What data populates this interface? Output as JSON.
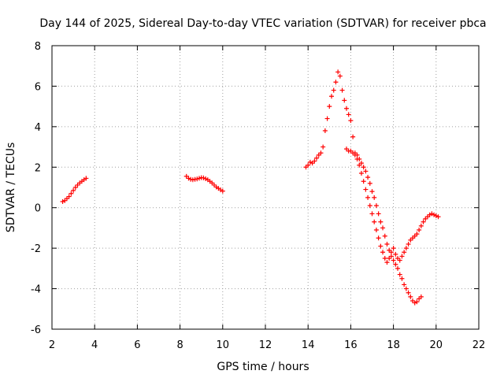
{
  "chart_data": {
    "type": "scatter",
    "title": "Day 144 of 2025, Sidereal Day-to-day VTEC variation (SDTVAR) for receiver pbca",
    "xlabel": "GPS time / hours",
    "ylabel": "SDTVAR / TECUs",
    "xlim": [
      2,
      22
    ],
    "ylim": [
      -6,
      8
    ],
    "xticks": [
      2,
      4,
      6,
      8,
      10,
      12,
      14,
      16,
      18,
      20,
      22
    ],
    "yticks": [
      -6,
      -4,
      -2,
      0,
      2,
      4,
      6,
      8
    ],
    "grid": true,
    "marker": "+",
    "color": "#ff0000",
    "series": [
      {
        "name": "segment-1",
        "points": [
          [
            2.5,
            0.3
          ],
          [
            2.6,
            0.35
          ],
          [
            2.7,
            0.45
          ],
          [
            2.8,
            0.55
          ],
          [
            2.9,
            0.7
          ],
          [
            3.0,
            0.85
          ],
          [
            3.1,
            1.0
          ],
          [
            3.2,
            1.12
          ],
          [
            3.3,
            1.22
          ],
          [
            3.4,
            1.3
          ],
          [
            3.5,
            1.38
          ],
          [
            3.6,
            1.45
          ]
        ]
      },
      {
        "name": "segment-2",
        "points": [
          [
            8.3,
            1.55
          ],
          [
            8.4,
            1.45
          ],
          [
            8.5,
            1.4
          ],
          [
            8.6,
            1.38
          ],
          [
            8.7,
            1.4
          ],
          [
            8.8,
            1.42
          ],
          [
            8.9,
            1.45
          ],
          [
            9.0,
            1.48
          ],
          [
            9.1,
            1.47
          ],
          [
            9.2,
            1.43
          ],
          [
            9.3,
            1.38
          ],
          [
            9.4,
            1.3
          ],
          [
            9.5,
            1.22
          ],
          [
            9.6,
            1.12
          ],
          [
            9.7,
            1.02
          ],
          [
            9.8,
            0.95
          ],
          [
            9.9,
            0.88
          ],
          [
            10.0,
            0.82
          ]
        ]
      },
      {
        "name": "segment-3",
        "points": [
          [
            13.9,
            2.0
          ],
          [
            14.0,
            2.1
          ],
          [
            14.1,
            2.25
          ],
          [
            14.2,
            2.2
          ],
          [
            14.3,
            2.3
          ],
          [
            14.4,
            2.45
          ],
          [
            14.5,
            2.6
          ],
          [
            14.6,
            2.7
          ],
          [
            14.7,
            3.0
          ],
          [
            14.8,
            3.8
          ],
          [
            14.9,
            4.4
          ],
          [
            15.0,
            5.0
          ],
          [
            15.1,
            5.5
          ],
          [
            15.2,
            5.8
          ],
          [
            15.3,
            6.2
          ],
          [
            15.4,
            6.7
          ],
          [
            15.5,
            6.5
          ],
          [
            15.6,
            5.8
          ],
          [
            15.7,
            5.3
          ],
          [
            15.8,
            4.9
          ],
          [
            15.9,
            4.6
          ],
          [
            16.0,
            4.3
          ],
          [
            16.1,
            3.5
          ],
          [
            16.2,
            2.7
          ],
          [
            16.3,
            2.6
          ],
          [
            16.4,
            2.4
          ],
          [
            16.5,
            2.2
          ],
          [
            16.6,
            2.0
          ],
          [
            16.7,
            1.8
          ],
          [
            16.8,
            1.5
          ],
          [
            16.9,
            1.2
          ],
          [
            17.0,
            0.8
          ],
          [
            17.1,
            0.5
          ],
          [
            17.2,
            0.1
          ],
          [
            17.3,
            -0.3
          ],
          [
            17.4,
            -0.7
          ],
          [
            17.5,
            -1.0
          ],
          [
            17.6,
            -1.4
          ],
          [
            17.7,
            -1.8
          ],
          [
            17.8,
            -2.1
          ],
          [
            17.9,
            -2.4
          ],
          [
            18.0,
            -2.6
          ],
          [
            18.1,
            -2.8
          ],
          [
            18.2,
            -3.0
          ],
          [
            18.3,
            -3.3
          ],
          [
            18.4,
            -3.5
          ],
          [
            18.5,
            -3.8
          ],
          [
            18.6,
            -4.0
          ],
          [
            18.7,
            -4.2
          ],
          [
            18.8,
            -4.4
          ],
          [
            18.9,
            -4.6
          ],
          [
            19.0,
            -4.7
          ],
          [
            19.1,
            -4.65
          ],
          [
            19.2,
            -4.5
          ],
          [
            19.3,
            -4.4
          ]
        ]
      },
      {
        "name": "segment-4",
        "points": [
          [
            15.8,
            2.9
          ],
          [
            15.9,
            2.8
          ],
          [
            16.0,
            2.8
          ],
          [
            16.1,
            2.7
          ],
          [
            16.2,
            2.6
          ],
          [
            16.3,
            2.4
          ],
          [
            16.4,
            2.1
          ],
          [
            16.5,
            1.7
          ],
          [
            16.6,
            1.3
          ],
          [
            16.7,
            0.9
          ],
          [
            16.8,
            0.5
          ],
          [
            16.9,
            0.1
          ],
          [
            17.0,
            -0.3
          ],
          [
            17.1,
            -0.7
          ],
          [
            17.2,
            -1.1
          ],
          [
            17.3,
            -1.5
          ],
          [
            17.4,
            -1.9
          ],
          [
            17.5,
            -2.2
          ],
          [
            17.6,
            -2.5
          ],
          [
            17.7,
            -2.7
          ],
          [
            17.8,
            -2.5
          ],
          [
            17.9,
            -2.2
          ],
          [
            18.0,
            -2.0
          ],
          [
            18.1,
            -2.3
          ],
          [
            18.2,
            -2.5
          ],
          [
            18.3,
            -2.6
          ],
          [
            18.4,
            -2.4
          ],
          [
            18.5,
            -2.2
          ],
          [
            18.6,
            -2.0
          ],
          [
            18.7,
            -1.8
          ],
          [
            18.8,
            -1.6
          ],
          [
            18.9,
            -1.5
          ],
          [
            19.0,
            -1.4
          ],
          [
            19.1,
            -1.3
          ],
          [
            19.2,
            -1.1
          ],
          [
            19.3,
            -0.9
          ],
          [
            19.4,
            -0.7
          ],
          [
            19.5,
            -0.55
          ],
          [
            19.6,
            -0.45
          ],
          [
            19.7,
            -0.35
          ],
          [
            19.8,
            -0.3
          ],
          [
            19.9,
            -0.35
          ],
          [
            20.0,
            -0.4
          ],
          [
            20.1,
            -0.45
          ]
        ]
      }
    ]
  }
}
